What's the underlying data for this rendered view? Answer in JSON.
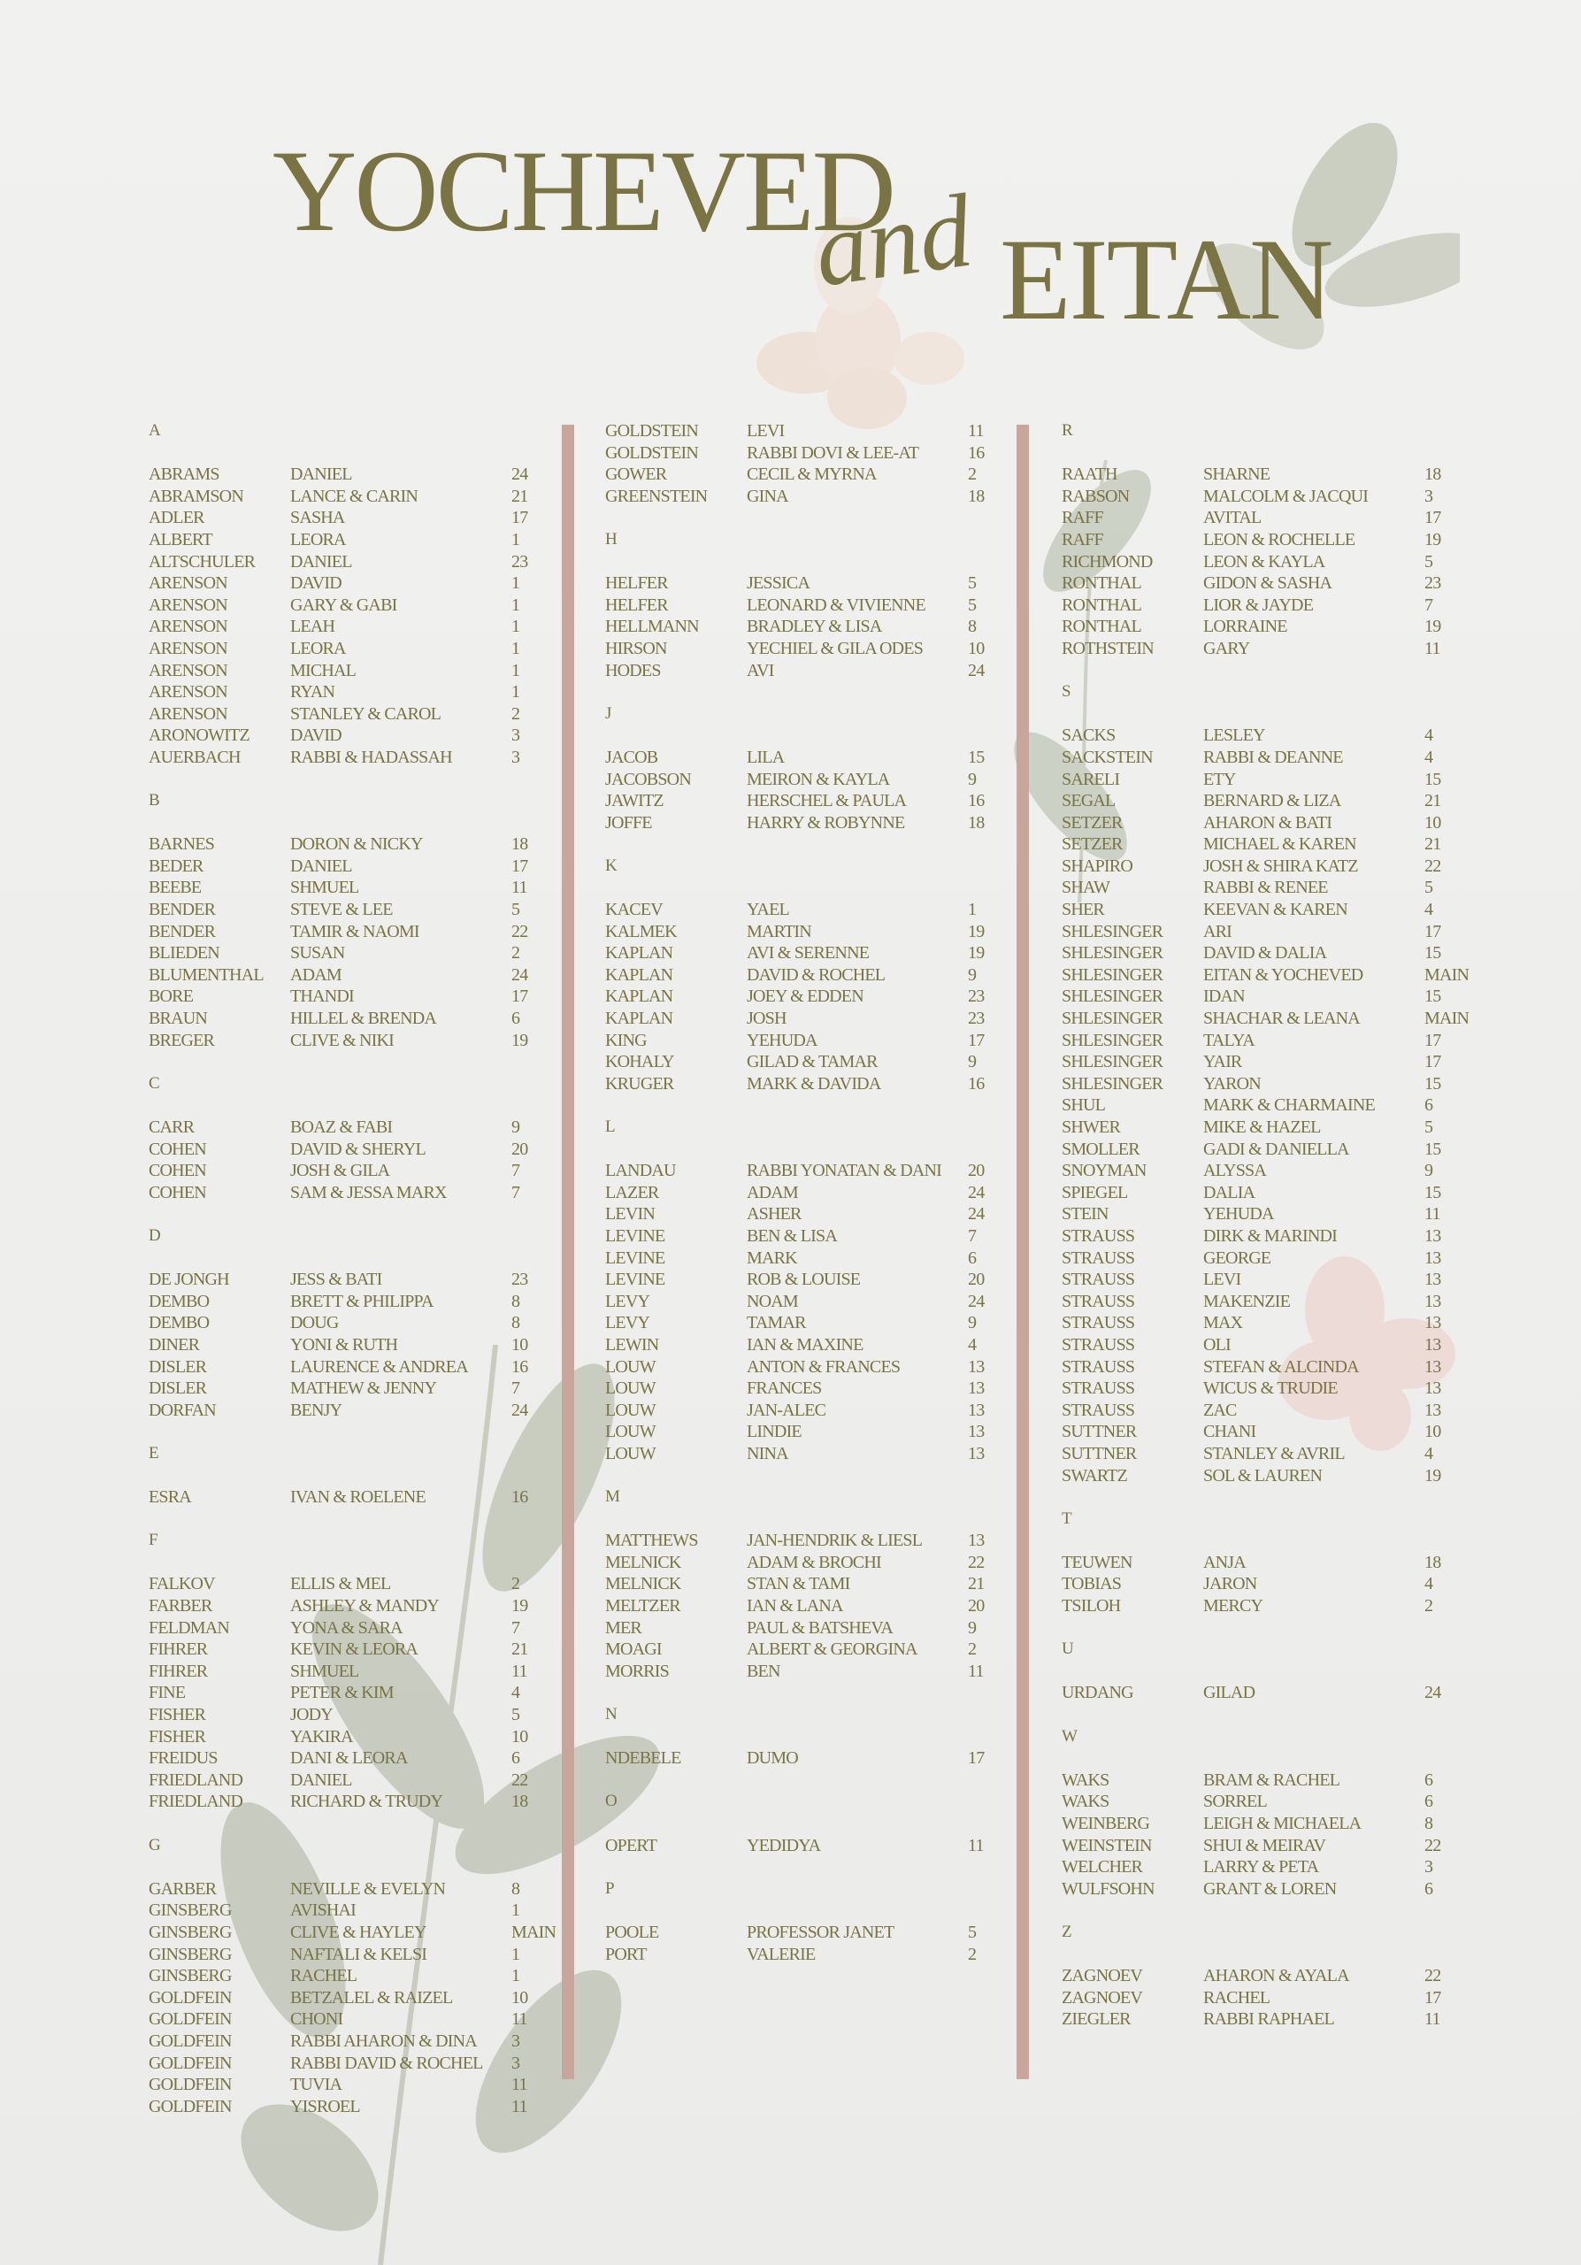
{
  "title": {
    "first": "YOCHEVED",
    "and": "and",
    "second": "EITAN"
  },
  "colors": {
    "text": "#7a7344",
    "divider": "#c8a69c",
    "background": "#ededeb"
  },
  "columns": [
    {
      "sections": [
        {
          "letter": "A",
          "rows": [
            [
              "ABRAMS",
              "DANIEL",
              "24"
            ],
            [
              "ABRAMSON",
              "LANCE & CARIN",
              "21"
            ],
            [
              "ADLER",
              "SASHA",
              "17"
            ],
            [
              "ALBERT",
              "LEORA",
              "1"
            ],
            [
              "ALTSCHULER",
              "DANIEL",
              "23"
            ],
            [
              "ARENSON",
              "DAVID",
              "1"
            ],
            [
              "ARENSON",
              "GARY & GABI",
              "1"
            ],
            [
              "ARENSON",
              "LEAH",
              "1"
            ],
            [
              "ARENSON",
              "LEORA",
              "1"
            ],
            [
              "ARENSON",
              "MICHAL",
              "1"
            ],
            [
              "ARENSON",
              "RYAN",
              "1"
            ],
            [
              "ARENSON",
              "STANLEY & CAROL",
              "2"
            ],
            [
              "ARONOWITZ",
              "DAVID",
              "3"
            ],
            [
              "AUERBACH",
              "RABBI & HADASSAH",
              "3"
            ]
          ]
        },
        {
          "letter": "B",
          "rows": [
            [
              "BARNES",
              "DORON & NICKY",
              "18"
            ],
            [
              "BEDER",
              "DANIEL",
              "17"
            ],
            [
              "BEEBE",
              "SHMUEL",
              "11"
            ],
            [
              "BENDER",
              "STEVE & LEE",
              "5"
            ],
            [
              "BENDER",
              "TAMIR & NAOMI",
              "22"
            ],
            [
              "BLIEDEN",
              "SUSAN",
              "2"
            ],
            [
              "BLUMENTHAL",
              "ADAM",
              "24"
            ],
            [
              "BORE",
              "THANDI",
              "17"
            ],
            [
              "BRAUN",
              "HILLEL & BRENDA",
              "6"
            ],
            [
              "BREGER",
              "CLIVE & NIKI",
              "19"
            ]
          ]
        },
        {
          "letter": "C",
          "rows": [
            [
              "CARR",
              "BOAZ & FABI",
              "9"
            ],
            [
              "COHEN",
              "DAVID & SHERYL",
              "20"
            ],
            [
              "COHEN",
              "JOSH & GILA",
              "7"
            ],
            [
              "COHEN",
              "SAM & JESSA MARX",
              "7"
            ]
          ]
        },
        {
          "letter": "D",
          "rows": [
            [
              "DE JONGH",
              "JESS & BATI",
              "23"
            ],
            [
              "DEMBO",
              "BRETT & PHILIPPA",
              "8"
            ],
            [
              "DEMBO",
              "DOUG",
              "8"
            ],
            [
              "DINER",
              "YONI & RUTH",
              "10"
            ],
            [
              "DISLER",
              "LAURENCE & ANDREA",
              "16"
            ],
            [
              "DISLER",
              "MATHEW & JENNY",
              "7"
            ],
            [
              "DORFAN",
              "BENJY",
              "24"
            ]
          ]
        },
        {
          "letter": "E",
          "rows": [
            [
              "ESRA",
              "IVAN & ROELENE",
              "16"
            ]
          ]
        },
        {
          "letter": "F",
          "rows": [
            [
              "FALKOV",
              "ELLIS & MEL",
              "2"
            ],
            [
              "FARBER",
              "ASHLEY & MANDY",
              "19"
            ],
            [
              "FELDMAN",
              "YONA & SARA",
              "7"
            ],
            [
              "FIHRER",
              "KEVIN & LEORA",
              "21"
            ],
            [
              "FIHRER",
              "SHMUEL",
              "11"
            ],
            [
              "FINE",
              "PETER & KIM",
              "4"
            ],
            [
              "FISHER",
              "JODY",
              "5"
            ],
            [
              "FISHER",
              "YAKIRA",
              "10"
            ],
            [
              "FREIDUS",
              "DANI & LEORA",
              "6"
            ],
            [
              "FRIEDLAND",
              "DANIEL",
              "22"
            ],
            [
              "FRIEDLAND",
              "RICHARD & TRUDY",
              "18"
            ]
          ]
        },
        {
          "letter": "G",
          "rows": [
            [
              "GARBER",
              "NEVILLE & EVELYN",
              "8"
            ],
            [
              "GINSBERG",
              "AVISHAI",
              "1"
            ],
            [
              "GINSBERG",
              "CLIVE & HAYLEY",
              "MAIN"
            ],
            [
              "GINSBERG",
              "NAFTALI & KELSI",
              "1"
            ],
            [
              "GINSBERG",
              "RACHEL",
              "1"
            ],
            [
              "GOLDFEIN",
              "BETZALEL & RAIZEL",
              "10"
            ],
            [
              "GOLDFEIN",
              "CHONI",
              "11"
            ],
            [
              "GOLDFEIN",
              "RABBI AHARON & DINA",
              "3"
            ],
            [
              "GOLDFEIN",
              "RABBI DAVID & ROCHEL",
              "3"
            ],
            [
              "GOLDFEIN",
              "TUVIA",
              "11"
            ],
            [
              "GOLDFEIN",
              "YISROEL",
              "11"
            ]
          ]
        }
      ]
    },
    {
      "sections": [
        {
          "letter": "",
          "rows": [
            [
              "GOLDSTEIN",
              "LEVI",
              "11"
            ],
            [
              "GOLDSTEIN",
              "RABBI DOVI & LEE-AT",
              "16"
            ],
            [
              "GOWER",
              "CECIL & MYRNA",
              "2"
            ],
            [
              "GREENSTEIN",
              "GINA",
              "18"
            ]
          ]
        },
        {
          "letter": "H",
          "rows": [
            [
              "HELFER",
              "JESSICA",
              "5"
            ],
            [
              "HELFER",
              "LEONARD & VIVIENNE",
              "5"
            ],
            [
              "HELLMANN",
              "BRADLEY & LISA",
              "8"
            ],
            [
              "HIRSON",
              "YECHIEL & GILA ODES",
              "10"
            ],
            [
              "HODES",
              "AVI",
              "24"
            ]
          ]
        },
        {
          "letter": "J",
          "rows": [
            [
              "JACOB",
              "LILA",
              "15"
            ],
            [
              "JACOBSON",
              "MEIRON & KAYLA",
              "9"
            ],
            [
              "JAWITZ",
              "HERSCHEL & PAULA",
              "16"
            ],
            [
              "JOFFE",
              "HARRY & ROBYNNE",
              "18"
            ]
          ]
        },
        {
          "letter": "K",
          "rows": [
            [
              "KACEV",
              "YAEL",
              "1"
            ],
            [
              "KALMEK",
              "MARTIN",
              "19"
            ],
            [
              "KAPLAN",
              "AVI & SERENNE",
              "19"
            ],
            [
              "KAPLAN",
              "DAVID & ROCHEL",
              "9"
            ],
            [
              "KAPLAN",
              "JOEY & EDDEN",
              "23"
            ],
            [
              "KAPLAN",
              "JOSH",
              "23"
            ],
            [
              "KING",
              "YEHUDA",
              "17"
            ],
            [
              "KOHALY",
              "GILAD & TAMAR",
              "9"
            ],
            [
              "KRUGER",
              "MARK & DAVIDA",
              "16"
            ]
          ]
        },
        {
          "letter": "L",
          "rows": [
            [
              "LANDAU",
              "RABBI YONATAN & DANI",
              "20"
            ],
            [
              "LAZER",
              "ADAM",
              "24"
            ],
            [
              "LEVIN",
              "ASHER",
              "24"
            ],
            [
              "LEVINE",
              "BEN & LISA",
              "7"
            ],
            [
              "LEVINE",
              "MARK",
              "6"
            ],
            [
              "LEVINE",
              "ROB & LOUISE",
              "20"
            ],
            [
              "LEVY",
              "NOAM",
              "24"
            ],
            [
              "LEVY",
              "TAMAR",
              "9"
            ],
            [
              "LEWIN",
              "IAN & MAXINE",
              "4"
            ],
            [
              "LOUW",
              "ANTON & FRANCES",
              "13"
            ],
            [
              "LOUW",
              "FRANCES",
              "13"
            ],
            [
              "LOUW",
              "JAN-ALEC",
              "13"
            ],
            [
              "LOUW",
              "LINDIE",
              "13"
            ],
            [
              "LOUW",
              "NINA",
              "13"
            ]
          ]
        },
        {
          "letter": "M",
          "rows": [
            [
              "MATTHEWS",
              "JAN-HENDRIK & LIESL",
              "13"
            ],
            [
              "MELNICK",
              "ADAM & BROCHI",
              "22"
            ],
            [
              "MELNICK",
              "STAN & TAMI",
              "21"
            ],
            [
              "MELTZER",
              "IAN & LANA",
              "20"
            ],
            [
              "MER",
              "PAUL & BATSHEVA",
              "9"
            ],
            [
              "MOAGI",
              "ALBERT & GEORGINA",
              "2"
            ],
            [
              "MORRIS",
              "BEN",
              "11"
            ]
          ]
        },
        {
          "letter": "N",
          "rows": [
            [
              "NDEBELE",
              "DUMO",
              "17"
            ]
          ]
        },
        {
          "letter": "O",
          "rows": [
            [
              "OPERT",
              "YEDIDYA",
              "11"
            ]
          ]
        },
        {
          "letter": "P",
          "rows": [
            [
              "POOLE",
              "PROFESSOR JANET",
              "5"
            ],
            [
              "PORT",
              "VALERIE",
              "2"
            ]
          ]
        }
      ]
    },
    {
      "sections": [
        {
          "letter": "R",
          "rows": [
            [
              "RAATH",
              "SHARNE",
              "18"
            ],
            [
              "RABSON",
              "MALCOLM & JACQUI",
              "3"
            ],
            [
              "RAFF",
              "AVITAL",
              "17"
            ],
            [
              "RAFF",
              "LEON & ROCHELLE",
              "19"
            ],
            [
              "RICHMOND",
              "LEON & KAYLA",
              "5"
            ],
            [
              "RONTHAL",
              "GIDON & SASHA",
              "23"
            ],
            [
              "RONTHAL",
              "LIOR & JAYDE",
              "7"
            ],
            [
              "RONTHAL",
              "LORRAINE",
              "19"
            ],
            [
              "ROTHSTEIN",
              "GARY",
              "11"
            ]
          ]
        },
        {
          "letter": "S",
          "rows": [
            [
              "SACKS",
              "LESLEY",
              "4"
            ],
            [
              "SACKSTEIN",
              "RABBI & DEANNE",
              "4"
            ],
            [
              "SARELI",
              "ETY",
              "15"
            ],
            [
              "SEGAL",
              "BERNARD & LIZA",
              "21"
            ],
            [
              "SETZER",
              "AHARON & BATI",
              "10"
            ],
            [
              "SETZER",
              "MICHAEL & KAREN",
              "21"
            ],
            [
              "SHAPIRO",
              "JOSH & SHIRA KATZ",
              "22"
            ],
            [
              "SHAW",
              "RABBI & RENEE",
              "5"
            ],
            [
              "SHER",
              "KEEVAN & KAREN",
              "4"
            ],
            [
              "SHLESINGER",
              "ARI",
              "17"
            ],
            [
              "SHLESINGER",
              "DAVID & DALIA",
              "15"
            ],
            [
              "SHLESINGER",
              "EITAN & YOCHEVED",
              "MAIN"
            ],
            [
              "SHLESINGER",
              "IDAN",
              "15"
            ],
            [
              "SHLESINGER",
              "SHACHAR & LEANA",
              "MAIN"
            ],
            [
              "SHLESINGER",
              "TALYA",
              "17"
            ],
            [
              "SHLESINGER",
              "YAIR",
              "17"
            ],
            [
              "SHLESINGER",
              "YARON",
              "15"
            ],
            [
              "SHUL",
              "MARK & CHARMAINE",
              "6"
            ],
            [
              "SHWER",
              "MIKE & HAZEL",
              "5"
            ],
            [
              "SMOLLER",
              "GADI & DANIELLA",
              "15"
            ],
            [
              "SNOYMAN",
              "ALYSSA",
              "9"
            ],
            [
              "SPIEGEL",
              "DALIA",
              "15"
            ],
            [
              "STEIN",
              "YEHUDA",
              "11"
            ],
            [
              "STRAUSS",
              "DIRK & MARINDI",
              "13"
            ],
            [
              "STRAUSS",
              "GEORGE",
              "13"
            ],
            [
              "STRAUSS",
              "LEVI",
              "13"
            ],
            [
              "STRAUSS",
              "MAKENZIE",
              "13"
            ],
            [
              "STRAUSS",
              "MAX",
              "13"
            ],
            [
              "STRAUSS",
              "OLI",
              "13"
            ],
            [
              "STRAUSS",
              "STEFAN & ALCINDA",
              "13"
            ],
            [
              "STRAUSS",
              "WICUS & TRUDIE",
              "13"
            ],
            [
              "STRAUSS",
              "ZAC",
              "13"
            ],
            [
              "SUTTNER",
              "CHANI",
              "10"
            ],
            [
              "SUTTNER",
              "STANLEY & AVRIL",
              "4"
            ],
            [
              "SWARTZ",
              "SOL & LAUREN",
              "19"
            ]
          ]
        },
        {
          "letter": "T",
          "rows": [
            [
              "TEUWEN",
              "ANJA",
              "18"
            ],
            [
              "TOBIAS",
              "JARON",
              "4"
            ],
            [
              "TSILOH",
              "MERCY",
              "2"
            ]
          ]
        },
        {
          "letter": "U",
          "rows": [
            [
              "URDANG",
              "GILAD",
              "24"
            ]
          ]
        },
        {
          "letter": "W",
          "rows": [
            [
              "WAKS",
              "BRAM & RACHEL",
              "6"
            ],
            [
              "WAKS",
              "SORREL",
              "6"
            ],
            [
              "WEINBERG",
              "LEIGH & MICHAELA",
              "8"
            ],
            [
              "WEINSTEIN",
              "SHUI & MEIRAV",
              "22"
            ],
            [
              "WELCHER",
              "LARRY & PETA",
              "3"
            ],
            [
              "WULFSOHN",
              "GRANT & LOREN",
              "6"
            ]
          ]
        },
        {
          "letter": "Z",
          "rows": [
            [
              "ZAGNOEV",
              "AHARON & AYALA",
              "22"
            ],
            [
              "ZAGNOEV",
              "RACHEL",
              "17"
            ],
            [
              "ZIEGLER",
              "RABBI RAPHAEL",
              "11"
            ]
          ]
        }
      ]
    }
  ]
}
